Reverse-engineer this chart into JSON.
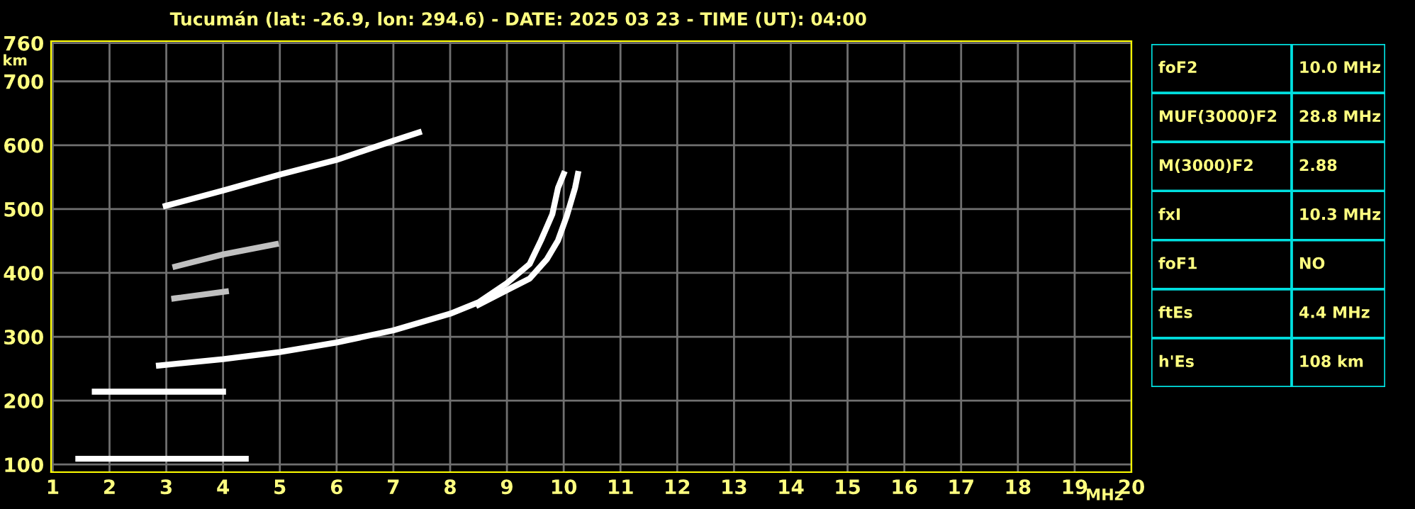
{
  "chart_data": [
    {
      "type": "line",
      "title": "Tucumán (lat: -26.9, lon: 294.6) - DATE: 2025 03 23 - TIME (UT): 04:00",
      "xlabel": "MHz",
      "ylabel": "km",
      "xlim": [
        0.97,
        20
      ],
      "ylim": [
        88,
        763
      ],
      "xticks": [
        1,
        2,
        3,
        4,
        5,
        6,
        7,
        8,
        9,
        10,
        11,
        12,
        13,
        14,
        15,
        16,
        17,
        18,
        19,
        20
      ],
      "yticks": [
        100,
        200,
        300,
        400,
        500,
        600,
        700,
        760
      ],
      "grid": true,
      "marker": "none",
      "line_style": "solid",
      "series": [
        {
          "color": "#ffffff",
          "x": [
            2.87,
            4,
            5,
            6,
            7,
            8,
            8.5,
            9,
            9.4,
            9.6,
            9.8,
            9.9,
            10.0
          ],
          "values": [
            255,
            265,
            276,
            291,
            310,
            336,
            354,
            384,
            414,
            451,
            492,
            533,
            555
          ]
        },
        {
          "color": "#ffffff",
          "x": [
            8.5,
            9,
            9.4,
            9.7,
            9.9,
            10.05,
            10.2,
            10.25
          ],
          "values": [
            350,
            373,
            391,
            421,
            451,
            488,
            533,
            555
          ]
        },
        {
          "color": "#ffffff",
          "x": [
            2.99,
            4,
            5,
            6,
            7,
            7.45
          ],
          "values": [
            505,
            529,
            554,
            577,
            607,
            620
          ]
        },
        {
          "color": "#c0c0c0",
          "x": [
            3.16,
            4.0,
            4.93
          ],
          "values": [
            410,
            429,
            445
          ]
        },
        {
          "color": "#c0c0c0",
          "x": [
            3.14,
            4.05
          ],
          "values": [
            360,
            371
          ]
        },
        {
          "color": "#ffffff",
          "x": [
            1.74,
            3.5,
            4.0
          ],
          "values": [
            214,
            214,
            214
          ]
        },
        {
          "color": "#ffffff",
          "x": [
            1.45,
            3.0,
            4.4
          ],
          "values": [
            109,
            109,
            109
          ]
        }
      ]
    },
    {
      "type": "other",
      "annotations": [
        "foF2",
        "10.0 MHz",
        "MUF(3000)F2",
        "28.8 MHz",
        "M(3000)F2",
        "2.88",
        "fxI",
        "10.3 MHz",
        "foF1",
        "NO",
        "ftEs",
        "4.4 MHz",
        "h'Es",
        "108 km"
      ]
    }
  ]
}
